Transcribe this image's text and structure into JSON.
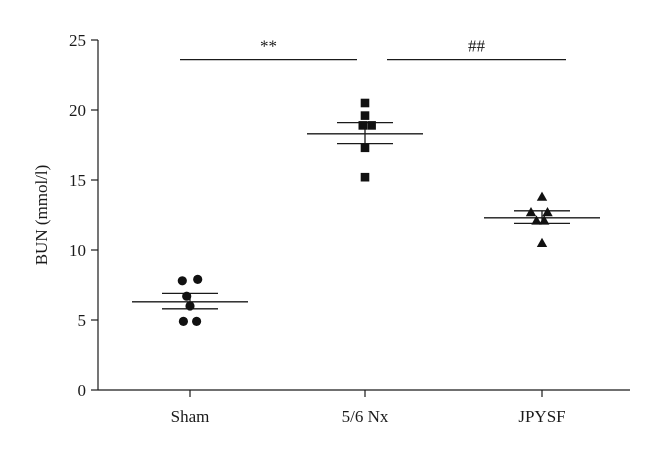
{
  "chart_data": {
    "type": "scatter",
    "ylabel": "BUN (mmol/l)",
    "ylim": [
      0,
      25
    ],
    "yticks": [
      0,
      5,
      10,
      15,
      20,
      25
    ],
    "categories": [
      "Sham",
      "5/6 Nx",
      "JPYSF"
    ],
    "series": [
      {
        "category": "Sham",
        "marker": "circle",
        "points": [
          {
            "offset": -0.7,
            "y": 7.8
          },
          {
            "offset": 0.7,
            "y": 7.9
          },
          {
            "offset": -0.3,
            "y": 6.7
          },
          {
            "offset": 0.0,
            "y": 6.0
          },
          {
            "offset": -0.6,
            "y": 4.9
          },
          {
            "offset": 0.6,
            "y": 4.9
          }
        ],
        "mean": 6.3,
        "sem_low": 5.8,
        "sem_high": 6.9
      },
      {
        "category": "5/6 Nx",
        "marker": "square",
        "points": [
          {
            "offset": 0.0,
            "y": 20.5
          },
          {
            "offset": 0.0,
            "y": 19.6
          },
          {
            "offset": -0.2,
            "y": 18.9
          },
          {
            "offset": 0.6,
            "y": 18.9
          },
          {
            "offset": 0.0,
            "y": 17.3
          },
          {
            "offset": 0.0,
            "y": 15.2
          }
        ],
        "mean": 18.3,
        "sem_low": 17.6,
        "sem_high": 19.1
      },
      {
        "category": "JPYSF",
        "marker": "triangle",
        "points": [
          {
            "offset": 0.0,
            "y": 13.8
          },
          {
            "offset": -1.0,
            "y": 12.7
          },
          {
            "offset": 0.5,
            "y": 12.7
          },
          {
            "offset": -0.5,
            "y": 12.1
          },
          {
            "offset": 0.2,
            "y": 12.1
          },
          {
            "offset": 0.0,
            "y": 10.5
          }
        ],
        "mean": 12.3,
        "sem_low": 11.9,
        "sem_high": 12.8
      }
    ],
    "annotations": [
      {
        "label": "**",
        "from": "Sham",
        "to": "5/6 Nx",
        "y": 23.6
      },
      {
        "label": "##",
        "from": "5/6 Nx",
        "to": "JPYSF",
        "y": 23.6
      }
    ],
    "grid": false,
    "legend": "none"
  }
}
